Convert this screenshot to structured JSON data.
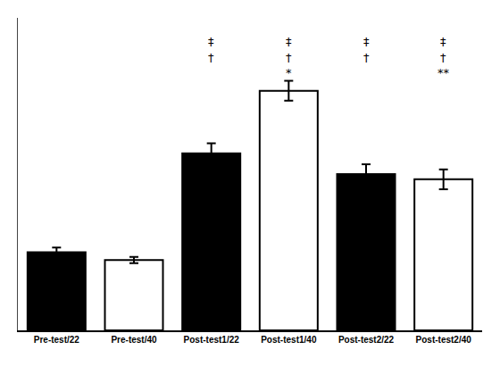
{
  "chart_data": {
    "type": "bar",
    "categories": [
      "Pre-test/22",
      "Pre-test/40",
      "Post-test1/22",
      "Post-test1/40",
      "Post-test2/22",
      "Post-test2/40"
    ],
    "values": [
      0.3,
      0.27,
      0.68,
      0.92,
      0.6,
      0.58
    ],
    "errors": [
      0.018,
      0.012,
      0.038,
      0.038,
      0.038,
      0.038
    ],
    "colors": [
      "#000000",
      "#ffffff",
      "#000000",
      "#ffffff",
      "#000000",
      "#ffffff"
    ],
    "ylim": [
      0,
      1.2
    ],
    "tick_labels": "x",
    "grid": false,
    "annotations": [
      {
        "x": "Post-test1/22",
        "y": 1.08,
        "text": "‡"
      },
      {
        "x": "Post-test1/22",
        "y": 1.02,
        "text": "†"
      },
      {
        "x": "Post-test1/40",
        "y": 1.08,
        "text": "‡"
      },
      {
        "x": "Post-test1/40",
        "y": 1.02,
        "text": "†"
      },
      {
        "x": "Post-test1/40",
        "y": 0.96,
        "text": "*"
      },
      {
        "x": "Post-test2/22",
        "y": 1.08,
        "text": "‡"
      },
      {
        "x": "Post-test2/22",
        "y": 1.02,
        "text": "†"
      },
      {
        "x": "Post-test2/40",
        "y": 1.08,
        "text": "‡"
      },
      {
        "x": "Post-test2/40",
        "y": 1.02,
        "text": "†"
      },
      {
        "x": "Post-test2/40",
        "y": 0.96,
        "text": "**"
      }
    ]
  }
}
